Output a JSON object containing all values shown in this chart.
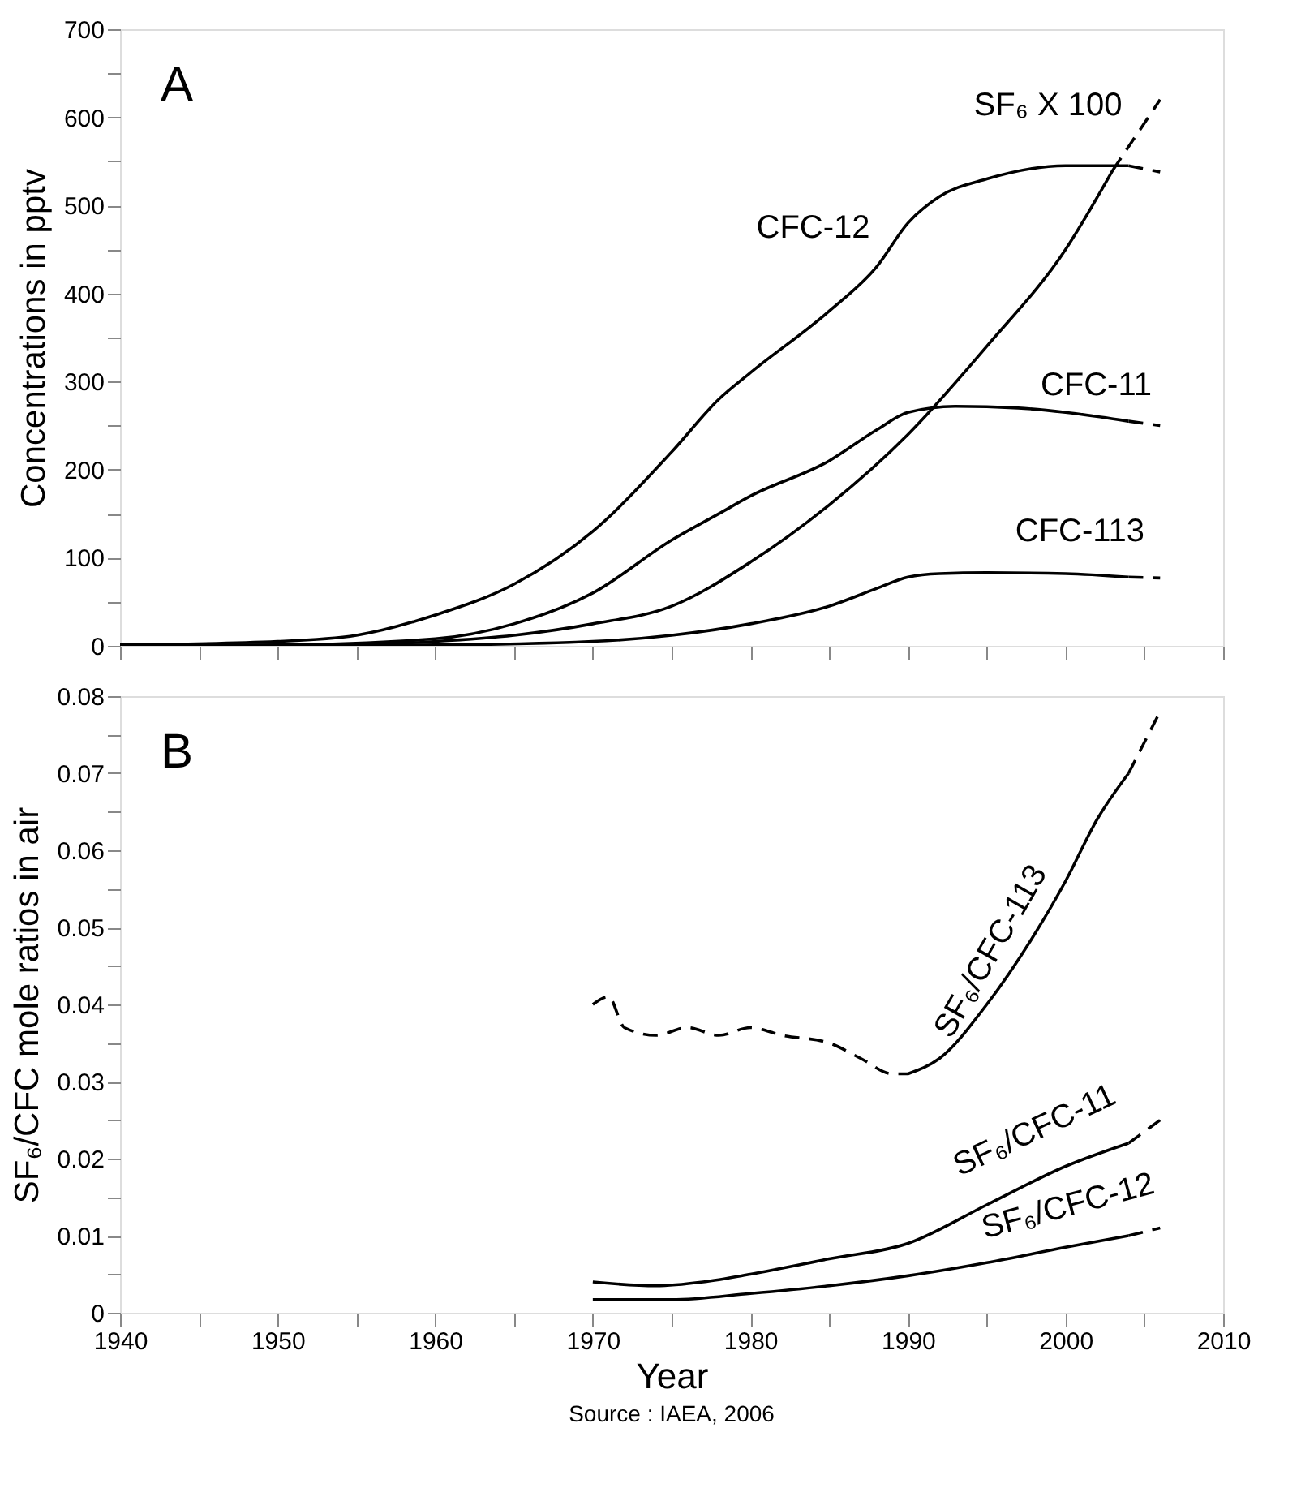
{
  "chart_data": [
    {
      "type": "line",
      "ylabel": "Concentrations in pptv",
      "annotations": [
        "A"
      ],
      "grid": false,
      "tick_labels": "y",
      "xlim": [
        1940,
        2010
      ],
      "xticks": [
        1940,
        {
          "value": 1945,
          "label": null
        },
        1950,
        {
          "value": 1955,
          "label": null
        },
        1960,
        {
          "value": 1965,
          "label": null
        },
        1970,
        {
          "value": 1975,
          "label": null
        },
        1980,
        {
          "value": 1985,
          "label": null
        },
        1990,
        {
          "value": 1995,
          "label": null
        },
        2000,
        {
          "value": 2005,
          "label": null
        },
        2010
      ],
      "ylim": [
        0,
        700
      ],
      "yticks": [
        0,
        {
          "value": 50,
          "label": null
        },
        100,
        {
          "value": 150,
          "label": null
        },
        200,
        {
          "value": 250,
          "label": null
        },
        300,
        {
          "value": 350,
          "label": null
        },
        400,
        {
          "value": 450,
          "label": null
        },
        500,
        {
          "value": 550,
          "label": null
        },
        600,
        {
          "value": 650,
          "label": null
        },
        700
      ],
      "series": [
        {
          "name": "CFC-12",
          "color": "#000000",
          "line_style": "solid",
          "x": [
            1940,
            1950,
            1955,
            1960,
            1965,
            1970,
            1975,
            1978,
            1980,
            1985,
            1988,
            1990,
            1992,
            1995,
            2000,
            2004
          ],
          "values": [
            1,
            5,
            12,
            35,
            70,
            130,
            220,
            280,
            310,
            380,
            430,
            480,
            510,
            530,
            545,
            545
          ]
        },
        {
          "color": "#000000",
          "line_style": "dashed",
          "x": [
            2004,
            2006
          ],
          "values": [
            545,
            538
          ]
        },
        {
          "name": "CFC-11",
          "color": "#000000",
          "line_style": "solid",
          "x": [
            1940,
            1950,
            1960,
            1965,
            1970,
            1975,
            1978,
            1980,
            1985,
            1988,
            1990,
            1993,
            1997,
            2000,
            2004
          ],
          "values": [
            0,
            1,
            8,
            25,
            60,
            120,
            150,
            170,
            210,
            245,
            265,
            272,
            270,
            265,
            255
          ]
        },
        {
          "color": "#000000",
          "line_style": "dashed",
          "x": [
            2004,
            2006
          ],
          "values": [
            255,
            250
          ]
        },
        {
          "name": "SF₆ X 100",
          "color": "#000000",
          "line_style": "solid",
          "x": [
            1940,
            1955,
            1960,
            1965,
            1970,
            1975,
            1980,
            1985,
            1990,
            1995,
            2000,
            2003
          ],
          "values": [
            0,
            1,
            5,
            12,
            25,
            45,
            95,
            160,
            240,
            340,
            450,
            540
          ]
        },
        {
          "color": "#000000",
          "line_style": "dashed",
          "x": [
            2003,
            2006
          ],
          "values": [
            540,
            620
          ]
        },
        {
          "name": "CFC-113",
          "color": "#000000",
          "line_style": "solid",
          "x": [
            1940,
            1960,
            1970,
            1975,
            1980,
            1985,
            1988,
            1990,
            1992,
            1995,
            2000,
            2004
          ],
          "values": [
            0,
            1,
            5,
            12,
            25,
            45,
            65,
            78,
            82,
            83,
            82,
            78
          ]
        },
        {
          "color": "#000000",
          "line_style": "dashed",
          "x": [
            2004,
            2006
          ],
          "values": [
            78,
            77
          ]
        }
      ]
    },
    {
      "type": "line",
      "xlabel": "Year",
      "ylabel": "SF₆/CFC  mole ratios in air",
      "annotations": [
        "B",
        "Source : IAEA, 2006"
      ],
      "grid": false,
      "xlim": [
        1940,
        2010
      ],
      "xticks": [
        1940,
        {
          "value": 1945,
          "label": null
        },
        1950,
        {
          "value": 1955,
          "label": null
        },
        1960,
        {
          "value": 1965,
          "label": null
        },
        1970,
        {
          "value": 1975,
          "label": null
        },
        1980,
        {
          "value": 1985,
          "label": null
        },
        1990,
        {
          "value": 1995,
          "label": null
        },
        2000,
        {
          "value": 2005,
          "label": null
        },
        2010
      ],
      "ylim": [
        0,
        0.08
      ],
      "yticks": [
        0,
        {
          "value": 0.005,
          "label": null
        },
        0.01,
        {
          "value": 0.015,
          "label": null
        },
        0.02,
        {
          "value": 0.025,
          "label": null
        },
        0.03,
        {
          "value": 0.035,
          "label": null
        },
        0.04,
        {
          "value": 0.045,
          "label": null
        },
        0.05,
        {
          "value": 0.055,
          "label": null
        },
        0.06,
        {
          "value": 0.065,
          "label": null
        },
        0.07,
        {
          "value": 0.075,
          "label": null
        },
        0.08
      ],
      "series": [
        {
          "color": "#000000",
          "line_style": "dashed",
          "x": [
            1970,
            1971,
            1972,
            1974,
            1976,
            1978,
            1980,
            1982,
            1985,
            1987,
            1989,
            1990
          ],
          "values": [
            0.04,
            0.041,
            0.037,
            0.036,
            0.037,
            0.036,
            0.037,
            0.036,
            0.035,
            0.033,
            0.031,
            0.031
          ]
        },
        {
          "name": "SF₆/CFC-113",
          "color": "#000000",
          "line_style": "solid",
          "x": [
            1990,
            1992,
            1995,
            1998,
            2000,
            2002,
            2004
          ],
          "values": [
            0.031,
            0.033,
            0.04,
            0.049,
            0.056,
            0.064,
            0.07
          ]
        },
        {
          "color": "#000000",
          "line_style": "dashed",
          "x": [
            2004,
            2006
          ],
          "values": [
            0.07,
            0.078
          ]
        },
        {
          "name": "SF₆/CFC-11",
          "color": "#000000",
          "line_style": "solid",
          "x": [
            1970,
            1974,
            1977,
            1980,
            1985,
            1990,
            1995,
            2000,
            2004
          ],
          "values": [
            0.004,
            0.0035,
            0.004,
            0.005,
            0.007,
            0.009,
            0.014,
            0.019,
            0.022
          ]
        },
        {
          "color": "#000000",
          "line_style": "dashed",
          "x": [
            2004,
            2006
          ],
          "values": [
            0.022,
            0.025
          ]
        },
        {
          "name": "SF₆/CFC-12",
          "color": "#000000",
          "line_style": "solid",
          "x": [
            1970,
            1975,
            1980,
            1985,
            1990,
            1995,
            2000,
            2004
          ],
          "values": [
            0.0017,
            0.0017,
            0.0025,
            0.0035,
            0.0048,
            0.0065,
            0.0085,
            0.01
          ]
        },
        {
          "color": "#000000",
          "line_style": "dashed",
          "x": [
            2004,
            2006
          ],
          "values": [
            0.01,
            0.011
          ]
        }
      ]
    }
  ]
}
